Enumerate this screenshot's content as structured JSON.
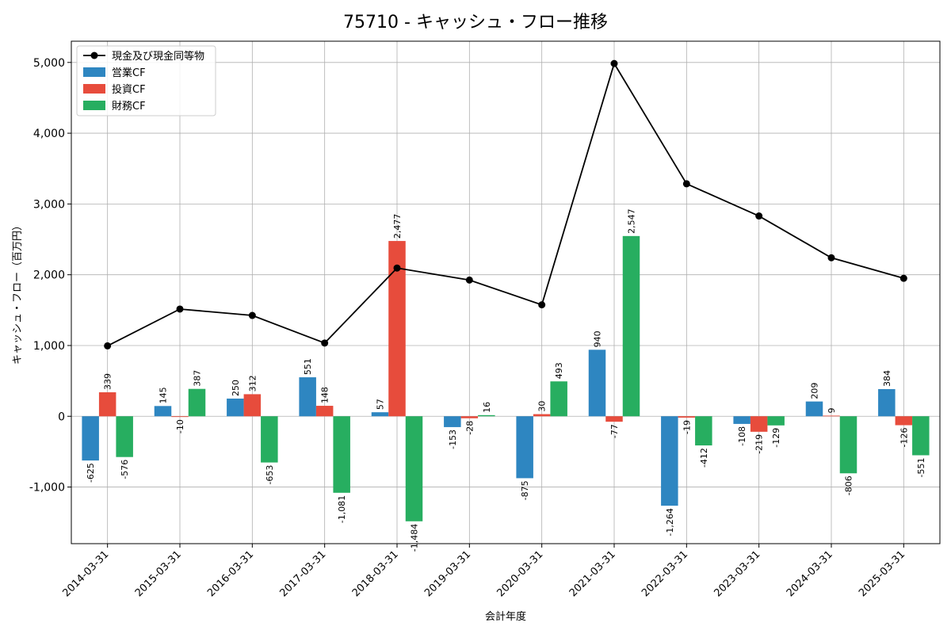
{
  "chart_data": {
    "type": "bar",
    "title": "75710 - キャッシュ・フロー推移",
    "xlabel": "会計年度",
    "ylabel": "キャッシュ・フロー（百万円）",
    "categories": [
      "2014-03-31",
      "2015-03-31",
      "2016-03-31",
      "2017-03-31",
      "2018-03-31",
      "2019-03-31",
      "2020-03-31",
      "2021-03-31",
      "2022-03-31",
      "2023-03-31",
      "2024-03-31",
      "2025-03-31"
    ],
    "ylim": [
      -1800,
      5300
    ],
    "yticks": [
      -1000,
      0,
      1000,
      2000,
      3000,
      4000,
      5000
    ],
    "ytick_labels": [
      "-1,000",
      "0",
      "1,000",
      "2,000",
      "3,000",
      "4,000",
      "5,000"
    ],
    "grid": true,
    "legend_position": "top-left",
    "series": [
      {
        "name": "営業CF",
        "kind": "bar",
        "color": "#2e86c1",
        "values": [
          -625,
          145,
          250,
          551,
          57,
          -153,
          -875,
          940,
          -1264,
          -108,
          209,
          384
        ],
        "labels": [
          "-625",
          "145",
          "250",
          "551",
          "57",
          "-153",
          "-875",
          "940",
          "-1,264",
          "-108",
          "209",
          "384"
        ]
      },
      {
        "name": "投資CF",
        "kind": "bar",
        "color": "#e74c3c",
        "values": [
          339,
          -10,
          312,
          148,
          2477,
          -28,
          30,
          -77,
          -19,
          -219,
          9,
          -126
        ],
        "labels": [
          "339",
          "-10",
          "312",
          "148",
          "2,477",
          "-28",
          "30",
          "-77",
          "-19",
          "-219",
          "9",
          "-126"
        ]
      },
      {
        "name": "財務CF",
        "kind": "bar",
        "color": "#27ae60",
        "values": [
          -576,
          387,
          -653,
          -1081,
          -1484,
          16,
          493,
          2547,
          -412,
          -129,
          -806,
          -551
        ],
        "labels": [
          "-576",
          "387",
          "-653",
          "-1,081",
          "-1,484",
          "16",
          "493",
          "2,547",
          "-412",
          "-129",
          "-806",
          "-551"
        ]
      },
      {
        "name": "現金及び現金同等物",
        "kind": "line",
        "color": "#000000",
        "values": [
          995,
          1515,
          1425,
          1035,
          2095,
          1925,
          1575,
          4985,
          3285,
          2830,
          2240,
          1950
        ]
      }
    ]
  }
}
